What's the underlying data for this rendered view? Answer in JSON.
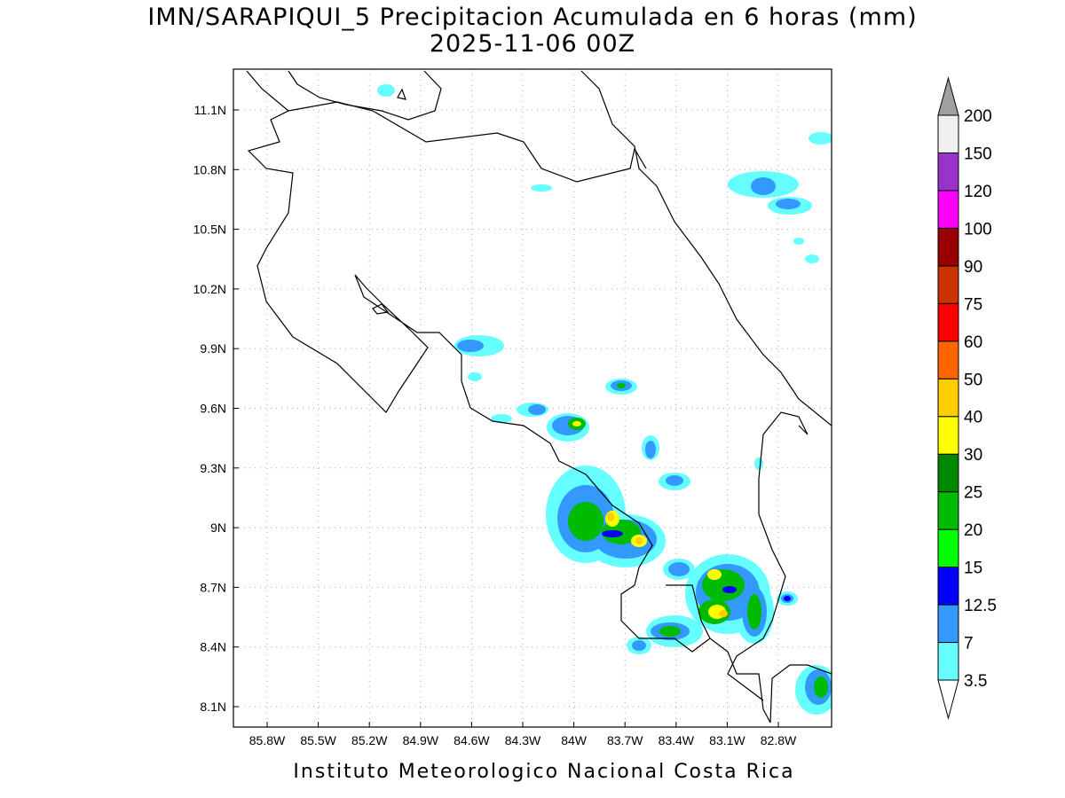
{
  "header": {
    "title": "IMN/SARAPIQUI_5 Precipitacion Acumulada en 6 horas (mm)",
    "subtitle": "2025-11-06 00Z"
  },
  "map": {
    "lon_ticks": [
      "85.8W",
      "85.5W",
      "85.2W",
      "84.9W",
      "84.6W",
      "84.3W",
      "84W",
      "83.7W",
      "83.4W",
      "83.1W",
      "82.8W"
    ],
    "lat_ticks": [
      "11.1N",
      "10.8N",
      "10.5N",
      "10.2N",
      "9.9N",
      "9.6N",
      "9.3N",
      "9N",
      "8.7N",
      "8.4N",
      "8.1N"
    ]
  },
  "colorbar": {
    "levels": [
      3.5,
      7,
      12.5,
      15,
      20,
      25,
      30,
      40,
      50,
      60,
      75,
      90,
      100,
      120,
      150,
      200
    ],
    "colors": [
      "#ffffff",
      "#66ffff",
      "#3399ff",
      "#0000ff",
      "#00ff00",
      "#00bb00",
      "#008800",
      "#ffff00",
      "#ffcc00",
      "#ff6600",
      "#ff0000",
      "#cc3300",
      "#990000",
      "#ff00ff",
      "#9933cc",
      "#f0f0f0",
      "#a0a0a0"
    ]
  },
  "footer": "Instituto Meteorologico Nacional Costa Rica"
}
